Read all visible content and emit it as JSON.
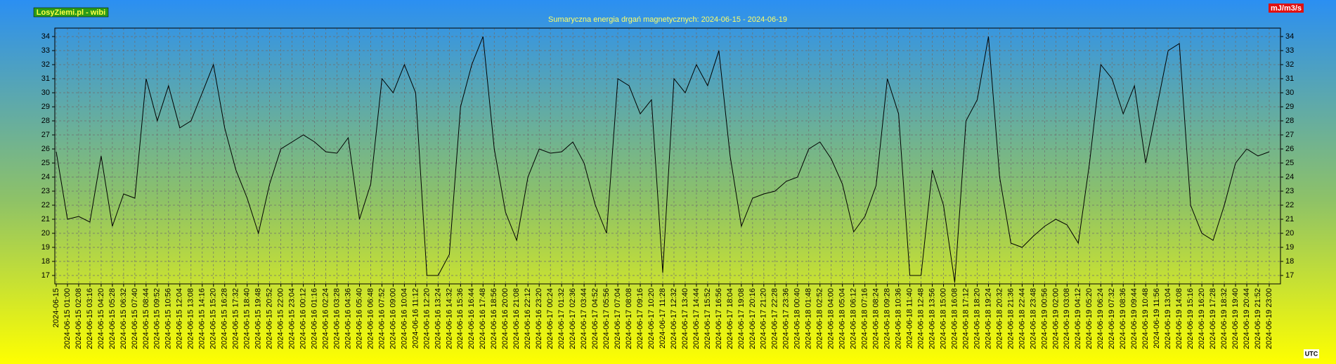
{
  "chart_data": {
    "type": "line",
    "title": "Sumaryczna energia drgań magnetycznych: 2024-06-15 - 2024-06-19",
    "source_badge": "LosyZiemi.pl - wibi",
    "unit_label": "mJ/m3/s",
    "timezone_label": "UTC",
    "categories": [
      "2024-06-15",
      "2024-06-15 01:00",
      "2024-06-15 02:08",
      "2024-06-15 03:16",
      "2024-06-15 04:20",
      "2024-06-15 05:28",
      "2024-06-15 06:32",
      "2024-06-15 07:40",
      "2024-06-15 08:44",
      "2024-06-15 09:52",
      "2024-06-15 10:56",
      "2024-06-15 12:04",
      "2024-06-15 13:08",
      "2024-06-15 14:16",
      "2024-06-15 15:20",
      "2024-06-15 16:28",
      "2024-06-15 17:32",
      "2024-06-15 18:40",
      "2024-06-15 19:48",
      "2024-06-15 20:52",
      "2024-06-15 22:00",
      "2024-06-15 23:04",
      "2024-06-16 00:12",
      "2024-06-16 01:16",
      "2024-06-16 02:24",
      "2024-06-16 03:28",
      "2024-06-16 04:36",
      "2024-06-16 05:40",
      "2024-06-16 06:48",
      "2024-06-16 07:52",
      "2024-06-16 09:00",
      "2024-06-16 10:04",
      "2024-06-16 11:12",
      "2024-06-16 12:20",
      "2024-06-16 13:24",
      "2024-06-16 14:32",
      "2024-06-16 15:36",
      "2024-06-16 16:44",
      "2024-06-16 17:48",
      "2024-06-16 18:56",
      "2024-06-16 20:00",
      "2024-06-16 21:08",
      "2024-06-16 22:12",
      "2024-06-16 23:20",
      "2024-06-17 00:24",
      "2024-06-17 01:32",
      "2024-06-17 02:36",
      "2024-06-17 03:44",
      "2024-06-17 04:52",
      "2024-06-17 05:56",
      "2024-06-17 07:04",
      "2024-06-17 08:08",
      "2024-06-17 09:16",
      "2024-06-17 10:20",
      "2024-06-17 11:28",
      "2024-06-17 12:32",
      "2024-06-17 13:40",
      "2024-06-17 14:44",
      "2024-06-17 15:52",
      "2024-06-17 16:56",
      "2024-06-17 18:04",
      "2024-06-17 19:08",
      "2024-06-17 20:16",
      "2024-06-17 21:20",
      "2024-06-17 22:28",
      "2024-06-17 23:36",
      "2024-06-18 00:40",
      "2024-06-18 01:48",
      "2024-06-18 02:52",
      "2024-06-18 04:00",
      "2024-06-18 05:04",
      "2024-06-18 06:12",
      "2024-06-18 07:16",
      "2024-06-18 08:24",
      "2024-06-18 09:28",
      "2024-06-18 10:36",
      "2024-06-18 11:40",
      "2024-06-18 12:48",
      "2024-06-18 13:56",
      "2024-06-18 15:00",
      "2024-06-18 16:08",
      "2024-06-18 17:12",
      "2024-06-18 18:20",
      "2024-06-18 19:24",
      "2024-06-18 20:32",
      "2024-06-18 21:36",
      "2024-06-18 22:44",
      "2024-06-18 23:48",
      "2024-06-19 00:56",
      "2024-06-19 02:00",
      "2024-06-19 03:08",
      "2024-06-19 04:12",
      "2024-06-19 05:20",
      "2024-06-19 06:24",
      "2024-06-19 07:32",
      "2024-06-19 08:36",
      "2024-06-19 09:44",
      "2024-06-19 10:48",
      "2024-06-19 11:56",
      "2024-06-19 13:04",
      "2024-06-19 14:08",
      "2024-06-19 15:16",
      "2024-06-19 16:20",
      "2024-06-19 17:28",
      "2024-06-19 18:32",
      "2024-06-19 19:40",
      "2024-06-19 20:44",
      "2024-06-19 21:52",
      "2024-06-19 23:00"
    ],
    "series": [
      {
        "color": "#000000",
        "values": [
          25.8,
          21,
          21.2,
          20.8,
          25.5,
          20.5,
          22.8,
          22.5,
          31,
          28,
          30.5,
          27.5,
          28,
          30,
          32,
          27.5,
          24.5,
          22.5,
          20,
          23.5,
          26,
          26.5,
          27,
          26.5,
          25.8,
          25.7,
          26.8,
          21,
          23.5,
          31,
          30,
          32,
          30,
          17,
          17,
          18.5,
          29,
          32,
          34,
          26,
          21.5,
          19.5,
          24,
          26,
          25.7,
          25.8,
          26.5,
          25,
          22,
          20,
          31,
          30.5,
          28.5,
          29.5,
          17.2,
          31,
          30,
          32,
          30.5,
          33,
          25.5,
          20.5,
          22.5,
          22.8,
          23,
          23.7,
          24,
          26,
          26.5,
          25.3,
          23.5,
          20.1,
          21.2,
          23.4,
          31,
          28.5,
          17,
          17,
          24.5,
          22,
          16.5,
          28,
          29.5,
          34,
          24,
          19.3,
          19,
          19.8,
          20.5,
          21,
          20.6,
          19.3,
          25,
          32,
          31,
          28.5,
          30.5,
          25,
          29,
          33,
          33.5,
          22,
          20,
          19.5,
          22,
          25,
          26,
          25.5,
          25.8
        ]
      }
    ],
    "ylim": [
      16.4,
      34.6
    ],
    "yticks": [
      17,
      18,
      19,
      20,
      21,
      22,
      23,
      24,
      25,
      26,
      27,
      28,
      29,
      30,
      31,
      32,
      33,
      34
    ],
    "grid": true
  }
}
